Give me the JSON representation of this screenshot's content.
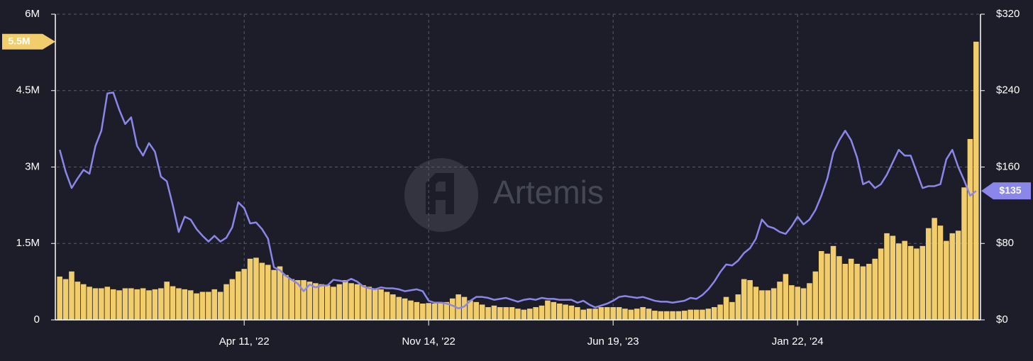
{
  "chart_data": {
    "type": "combo",
    "watermark": "Artemis",
    "categories": [
      null,
      null,
      null,
      null,
      null,
      null,
      null,
      null,
      null,
      null,
      null,
      null,
      null,
      null,
      null,
      null,
      null,
      null,
      null,
      null,
      null,
      null,
      null,
      null,
      null,
      null,
      null,
      null,
      null,
      null,
      null,
      "Apr 11, '22",
      null,
      null,
      null,
      null,
      null,
      null,
      null,
      null,
      null,
      null,
      null,
      null,
      null,
      null,
      null,
      null,
      null,
      null,
      null,
      null,
      null,
      null,
      null,
      null,
      null,
      null,
      null,
      null,
      null,
      null,
      "Nov 14, '22",
      null,
      null,
      null,
      null,
      null,
      null,
      null,
      null,
      null,
      null,
      null,
      null,
      null,
      null,
      null,
      null,
      null,
      null,
      null,
      null,
      null,
      null,
      null,
      null,
      null,
      null,
      null,
      null,
      null,
      null,
      "Jun 19, '23",
      null,
      null,
      null,
      null,
      null,
      null,
      null,
      null,
      null,
      null,
      null,
      null,
      null,
      null,
      null,
      null,
      null,
      null,
      null,
      null,
      null,
      null,
      null,
      null,
      null,
      null,
      null,
      null,
      null,
      null,
      "Jan 22, '24",
      null,
      null,
      null,
      null,
      null,
      null,
      null,
      null,
      null,
      null,
      null,
      null,
      null,
      null,
      null,
      null,
      null,
      null,
      null,
      null,
      null,
      null,
      null,
      null,
      null,
      null,
      null,
      null,
      null,
      null
    ],
    "series": [
      {
        "type": "bar",
        "color": "#f2cd6b",
        "values": [
          0.85,
          0.8,
          0.95,
          0.75,
          0.7,
          0.65,
          0.62,
          0.62,
          0.65,
          0.6,
          0.58,
          0.62,
          0.62,
          0.6,
          0.62,
          0.58,
          0.6,
          0.62,
          0.75,
          0.66,
          0.62,
          0.6,
          0.58,
          0.52,
          0.55,
          0.55,
          0.6,
          0.55,
          0.7,
          0.8,
          0.95,
          1.0,
          1.2,
          1.22,
          1.12,
          1.08,
          0.98,
          1.05,
          0.88,
          0.8,
          0.78,
          0.78,
          0.75,
          0.72,
          0.7,
          0.68,
          0.65,
          0.7,
          0.78,
          0.72,
          0.7,
          0.68,
          0.65,
          0.62,
          0.6,
          0.55,
          0.5,
          0.45,
          0.42,
          0.38,
          0.35,
          0.32,
          0.33,
          0.32,
          0.35,
          0.35,
          0.42,
          0.5,
          0.45,
          0.38,
          0.35,
          0.3,
          0.25,
          0.28,
          0.25,
          0.25,
          0.25,
          0.22,
          0.2,
          0.22,
          0.25,
          0.28,
          0.38,
          0.35,
          0.32,
          0.3,
          0.28,
          0.25,
          0.2,
          0.22,
          0.22,
          0.25,
          0.25,
          0.25,
          0.25,
          0.22,
          0.2,
          0.22,
          0.25,
          0.22,
          0.18,
          0.17,
          0.17,
          0.17,
          0.17,
          0.18,
          0.2,
          0.2,
          0.2,
          0.22,
          0.25,
          0.3,
          0.45,
          0.35,
          0.5,
          0.8,
          0.78,
          0.65,
          0.58,
          0.58,
          0.62,
          0.75,
          0.9,
          0.68,
          0.65,
          0.62,
          0.72,
          0.95,
          1.35,
          1.3,
          1.45,
          1.25,
          1.1,
          1.2,
          1.1,
          1.05,
          1.1,
          1.2,
          1.4,
          1.7,
          1.65,
          1.5,
          1.55,
          1.45,
          1.4,
          1.45,
          1.8,
          2.0,
          1.85,
          1.55,
          1.7,
          1.75,
          2.6,
          3.55,
          5.46
        ],
        "value_labels": [
          null,
          null,
          null,
          null,
          null,
          null,
          null,
          null,
          null,
          null,
          null,
          null,
          null,
          null,
          null,
          null,
          null,
          null,
          null,
          null,
          null,
          null,
          null,
          null,
          null,
          null,
          null,
          null,
          null,
          null,
          null,
          null,
          null,
          null,
          null,
          null,
          null,
          null,
          null,
          null,
          null,
          null,
          null,
          null,
          null,
          null,
          null,
          null,
          null,
          null,
          null,
          null,
          null,
          null,
          null,
          null,
          null,
          null,
          null,
          null,
          null,
          null,
          null,
          null,
          null,
          null,
          null,
          null,
          null,
          null,
          null,
          null,
          null,
          null,
          null,
          null,
          null,
          null,
          null,
          null,
          null,
          null,
          null,
          null,
          null,
          null,
          null,
          null,
          null,
          null,
          null,
          null,
          null,
          null,
          null,
          null,
          null,
          null,
          null,
          null,
          null,
          null,
          null,
          null,
          null,
          null,
          null,
          null,
          null,
          null,
          null,
          null,
          null,
          null,
          null,
          null,
          null,
          null,
          null,
          null,
          null,
          null,
          null,
          null,
          null,
          null,
          null,
          null,
          null,
          null,
          null,
          null,
          null,
          null,
          null,
          null,
          null,
          null,
          null,
          null,
          null,
          null,
          null,
          null,
          null,
          null,
          null,
          null,
          null,
          null,
          null,
          null,
          null,
          null,
          "5.5M"
        ]
      },
      {
        "type": "line",
        "axis": "y2",
        "color": "#8a86ea",
        "values": [
          178,
          155,
          138,
          148,
          157,
          153,
          182,
          198,
          237,
          238,
          220,
          205,
          212,
          182,
          172,
          185,
          176,
          150,
          145,
          120,
          92,
          108,
          105,
          95,
          88,
          82,
          88,
          82,
          86,
          97,
          123,
          117,
          101,
          102,
          95,
          85,
          55,
          52,
          46,
          42,
          38,
          30,
          37,
          34,
          36,
          36,
          42,
          41,
          40,
          43,
          40,
          35,
          33,
          32,
          34,
          33,
          33,
          32,
          30,
          31,
          32,
          30,
          20,
          18,
          18,
          17,
          15,
          12,
          14,
          20,
          24,
          24,
          23,
          21,
          22,
          23,
          21,
          19,
          21,
          22,
          21,
          23,
          22,
          22,
          21,
          21,
          21,
          18,
          20,
          16,
          13,
          15,
          17,
          20,
          24,
          25,
          24,
          23,
          24,
          22,
          20,
          19,
          19,
          18,
          19,
          20,
          23,
          22,
          26,
          32,
          40,
          50,
          58,
          57,
          62,
          70,
          75,
          85,
          105,
          98,
          96,
          92,
          90,
          98,
          108,
          100,
          105,
          115,
          130,
          148,
          175,
          188,
          198,
          188,
          170,
          142,
          145,
          138,
          142,
          152,
          165,
          178,
          172,
          172,
          155,
          138,
          140,
          140,
          142,
          168,
          178,
          160,
          146,
          130,
          135
        ],
        "value_labels": [
          null,
          null,
          null,
          null,
          null,
          null,
          null,
          null,
          null,
          null,
          null,
          null,
          null,
          null,
          null,
          null,
          null,
          null,
          null,
          null,
          null,
          null,
          null,
          null,
          null,
          null,
          null,
          null,
          null,
          null,
          null,
          null,
          null,
          null,
          null,
          null,
          null,
          null,
          null,
          null,
          null,
          null,
          null,
          null,
          null,
          null,
          null,
          null,
          null,
          null,
          null,
          null,
          null,
          null,
          null,
          null,
          null,
          null,
          null,
          null,
          null,
          null,
          null,
          null,
          null,
          null,
          null,
          null,
          null,
          null,
          null,
          null,
          null,
          null,
          null,
          null,
          null,
          null,
          null,
          null,
          null,
          null,
          null,
          null,
          null,
          null,
          null,
          null,
          null,
          null,
          null,
          null,
          null,
          null,
          null,
          null,
          null,
          null,
          null,
          null,
          null,
          null,
          null,
          null,
          null,
          null,
          null,
          null,
          null,
          null,
          null,
          null,
          null,
          null,
          null,
          null,
          null,
          null,
          null,
          null,
          null,
          null,
          null,
          null,
          null,
          null,
          null,
          null,
          null,
          null,
          null,
          null,
          null,
          null,
          null,
          null,
          null,
          null,
          null,
          null,
          null,
          null,
          null,
          null,
          null,
          null,
          null,
          null,
          null,
          null,
          null,
          null,
          null,
          null,
          "$135"
        ]
      }
    ],
    "ylim": [
      0,
      6
    ],
    "yticks": [
      0,
      {
        "value": 1.5,
        "label": "1.5M"
      },
      {
        "value": 3,
        "label": "3M"
      },
      {
        "value": 4.5,
        "label": "4.5M"
      },
      {
        "value": 6,
        "label": "6M"
      }
    ],
    "y2lim": [
      0,
      320
    ],
    "y2ticks": [
      {
        "value": 0,
        "label": "$0"
      },
      {
        "value": 80,
        "label": "$80"
      },
      {
        "value": 160,
        "label": "$160"
      },
      {
        "value": 240,
        "label": "$240"
      },
      {
        "value": 320,
        "label": "$320"
      }
    ],
    "grid": true
  }
}
